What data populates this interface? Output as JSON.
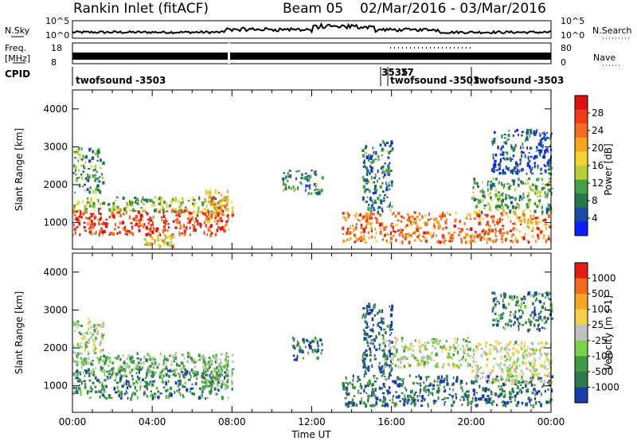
{
  "header": {
    "title": "Rankin Inlet (fitACF)",
    "beam": "Beam 05",
    "date_range": "02/Mar/2016 - 03/Mar/2016"
  },
  "top_panels": {
    "nsky_label": "N.Sky",
    "nsearch_label": "N.Search",
    "nsky_ticks": [
      "10^5",
      "10^0"
    ],
    "freq_label_1": "Freq.",
    "freq_label_2": "[MHz]",
    "freq_ticks": [
      "18",
      "8"
    ],
    "nave_label": "Nave",
    "nave_ticks": [
      "80",
      "0"
    ],
    "cpid_label": "CPID",
    "cpid_segments": [
      {
        "name": "twofsound",
        "id": "-3503"
      },
      {
        "name": "3535",
        "id": ""
      },
      {
        "name": "17",
        "id": ""
      },
      {
        "name": "twofsound",
        "id": "-3503"
      },
      {
        "name": "twofsound",
        "id": "-3503"
      }
    ]
  },
  "chart_data": [
    {
      "type": "heatmap",
      "parameter": "Power",
      "ylabel": "Slant Range [km]",
      "xlabel": "Time UT",
      "ylim": [
        300,
        4500
      ],
      "yticks": [
        1000,
        2000,
        3000,
        4000
      ],
      "x_tick_labels": [
        "00:00",
        "04:00",
        "08:00",
        "12:00",
        "16:00",
        "20:00",
        "00:00"
      ],
      "colorbar": {
        "label": "Power [dB]",
        "tick_labels": [
          "4",
          "8",
          "12",
          "16",
          "20",
          "24",
          "28"
        ],
        "colors": [
          "#0a1eff",
          "#1d4aa6",
          "#237a4c",
          "#46a04a",
          "#b9d034",
          "#f2d530",
          "#f6a51e",
          "#f46c1d",
          "#ee3b1a",
          "#e11010"
        ]
      },
      "regions": [
        {
          "t0": 0.0,
          "t1": 8.0,
          "r0": 700,
          "r1": 1400,
          "level": 0.85
        },
        {
          "t0": 0.0,
          "t1": 8.0,
          "r0": 1300,
          "r1": 1700,
          "level": 0.4
        },
        {
          "t0": 0.0,
          "t1": 1.5,
          "r0": 1800,
          "r1": 3000,
          "level": 0.3
        },
        {
          "t0": 3.5,
          "t1": 5.0,
          "r0": 400,
          "r1": 700,
          "level": 0.55
        },
        {
          "t0": 6.5,
          "t1": 8.0,
          "r0": 1000,
          "r1": 1900,
          "level": 0.7
        },
        {
          "t0": 10.5,
          "t1": 12.5,
          "r0": 1800,
          "r1": 2400,
          "level": 0.25
        },
        {
          "t0": 13.5,
          "t1": 24.0,
          "r0": 500,
          "r1": 1300,
          "level": 0.75
        },
        {
          "t0": 14.5,
          "t1": 16.0,
          "r0": 1300,
          "r1": 3200,
          "level": 0.25
        },
        {
          "t0": 20.0,
          "t1": 24.0,
          "r0": 1300,
          "r1": 2200,
          "level": 0.35
        },
        {
          "t0": 21.0,
          "t1": 24.0,
          "r0": 2300,
          "r1": 3500,
          "level": 0.15
        }
      ]
    },
    {
      "type": "heatmap",
      "parameter": "Velocity",
      "ylabel": "Slant Range [km]",
      "xlabel": "Time UT",
      "ylim": [
        300,
        4500
      ],
      "yticks": [
        1000,
        2000,
        3000,
        4000
      ],
      "x_tick_labels": [
        "00:00",
        "04:00",
        "08:00",
        "12:00",
        "16:00",
        "20:00",
        "00:00"
      ],
      "colorbar": {
        "label": "Velocity [m s-1]",
        "tick_labels": [
          "1000",
          "500",
          "100",
          "25",
          "-25",
          "-100",
          "-500",
          "-1000"
        ],
        "colors": [
          "#1a3ea8",
          "#2f7a4a",
          "#3f9a44",
          "#7bd24a",
          "#c0c0c0",
          "#f6d04a",
          "#f8a525",
          "#f26b1d",
          "#e41a14"
        ]
      },
      "regions": [
        {
          "t0": 0.0,
          "t1": 8.0,
          "r0": 700,
          "r1": 1500,
          "level": 0.2
        },
        {
          "t0": 0.0,
          "t1": 8.0,
          "r0": 1300,
          "r1": 1900,
          "level": 0.35
        },
        {
          "t0": 0.0,
          "t1": 1.5,
          "r0": 1900,
          "r1": 2800,
          "level": 0.45
        },
        {
          "t0": 6.5,
          "t1": 8.0,
          "r0": 1000,
          "r1": 1800,
          "level": 0.4
        },
        {
          "t0": 11.0,
          "t1": 12.5,
          "r0": 1700,
          "r1": 2300,
          "level": 0.15
        },
        {
          "t0": 13.5,
          "t1": 24.0,
          "r0": 500,
          "r1": 1300,
          "level": 0.15
        },
        {
          "t0": 14.5,
          "t1": 16.0,
          "r0": 1300,
          "r1": 3200,
          "level": 0.1
        },
        {
          "t0": 15.5,
          "t1": 20.0,
          "r0": 1500,
          "r1": 2300,
          "level": 0.45
        },
        {
          "t0": 20.0,
          "t1": 24.0,
          "r0": 1100,
          "r1": 2200,
          "level": 0.5
        },
        {
          "t0": 21.0,
          "t1": 24.0,
          "r0": 2500,
          "r1": 3500,
          "level": 0.2
        }
      ]
    }
  ]
}
